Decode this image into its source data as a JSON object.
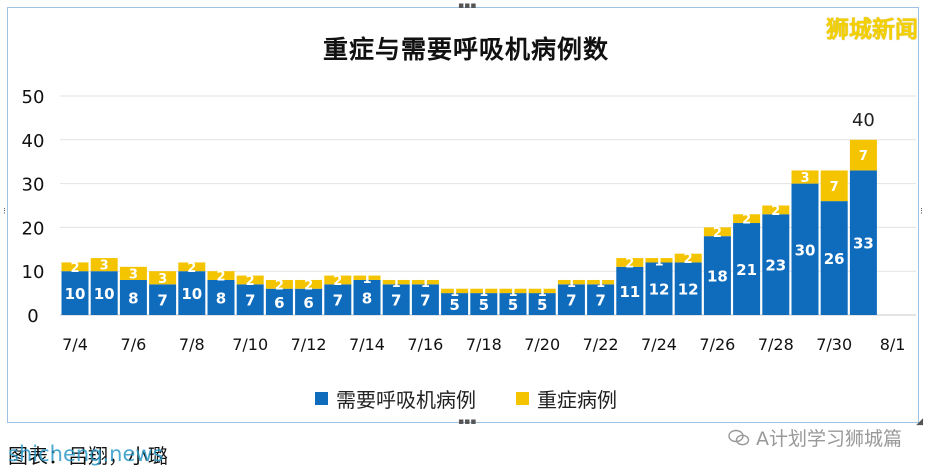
{
  "watermark_top": "狮城新闻",
  "caption": "图表：吕翔，小璐",
  "caption_overlay": "shicheng.news",
  "wechat_account": "A计划学习狮城篇",
  "colors": {
    "primary": "#0f6cbd",
    "secondary": "#f5c400"
  },
  "chart_data": {
    "type": "bar",
    "stacked": true,
    "title": "重症与需要呼吸机病例数",
    "xlabel": "",
    "ylabel": "",
    "ylim": [
      0,
      50
    ],
    "yticks": [
      0,
      10,
      20,
      30,
      40,
      50
    ],
    "categories": [
      "7/4",
      "7/5",
      "7/6",
      "7/7",
      "7/8",
      "7/9",
      "7/10",
      "7/11",
      "7/12",
      "7/13",
      "7/14",
      "7/15",
      "7/16",
      "7/17",
      "7/18",
      "7/19",
      "7/20",
      "7/21",
      "7/22",
      "7/23",
      "7/24",
      "7/25",
      "7/26",
      "7/27",
      "7/28",
      "7/29",
      "7/30",
      "7/31",
      "8/1"
    ],
    "xtick_labels": [
      "7/4",
      "7/6",
      "7/8",
      "7/10",
      "7/12",
      "7/14",
      "7/16",
      "7/18",
      "7/20",
      "7/22",
      "7/24",
      "7/26",
      "7/28",
      "7/30",
      "8/1"
    ],
    "series": [
      {
        "name": "需要呼吸机病例",
        "values": [
          10,
          10,
          8,
          7,
          10,
          8,
          7,
          6,
          6,
          7,
          8,
          7,
          7,
          5,
          5,
          5,
          5,
          7,
          7,
          11,
          12,
          12,
          18,
          21,
          23,
          30,
          26,
          33,
          null
        ]
      },
      {
        "name": "重症病例",
        "values": [
          2,
          3,
          3,
          3,
          2,
          2,
          2,
          2,
          2,
          2,
          1,
          1,
          1,
          1,
          1,
          1,
          1,
          1,
          1,
          2,
          1,
          2,
          2,
          2,
          2,
          3,
          7,
          7,
          null
        ]
      }
    ],
    "annotations": [
      {
        "category": "7/31",
        "text": "40"
      }
    ],
    "grid": true,
    "legend_position": "bottom"
  }
}
